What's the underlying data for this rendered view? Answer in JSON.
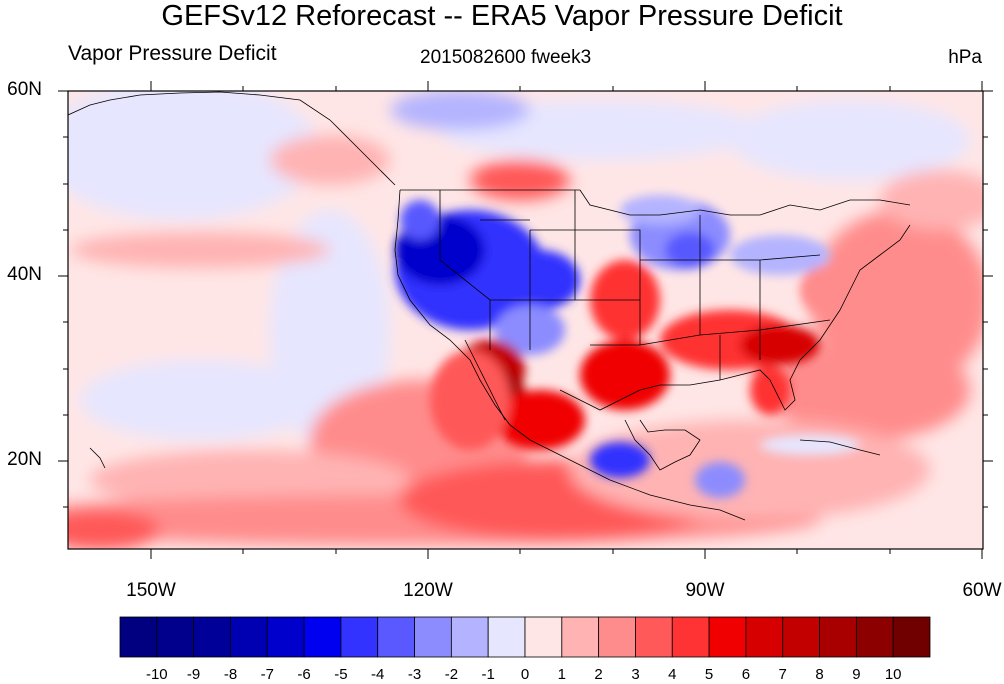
{
  "title": "GEFSv12 Reforecast -- ERA5 Vapor Pressure Deficit",
  "left_string": "Vapor Pressure Deficit",
  "center_string": "2015082600 fweek3",
  "right_string": "hPa",
  "lat_labels": [
    "60N",
    "40N",
    "20N"
  ],
  "lon_labels": [
    "150W",
    "120W",
    "90W",
    "60W"
  ],
  "colorbar": {
    "labels": [
      "-10",
      "-9",
      "-8",
      "-7",
      "-6",
      "-5",
      "-4",
      "-3",
      "-2",
      "-1",
      "0",
      "1",
      "2",
      "3",
      "4",
      "5",
      "6",
      "7",
      "8",
      "9",
      "10"
    ],
    "colors": [
      "#000080",
      "#00008c",
      "#000099",
      "#0000b3",
      "#0000cc",
      "#0000f0",
      "#3333ff",
      "#5959ff",
      "#8c8cff",
      "#b3b3ff",
      "#e6e6ff",
      "#ffe6e6",
      "#ffb3b3",
      "#ff8c8c",
      "#ff5959",
      "#ff3333",
      "#f00000",
      "#d70000",
      "#c20000",
      "#a80000",
      "#8c0000",
      "#700000"
    ]
  },
  "map": {
    "projection": "cylindrical-equidistant",
    "lon_range": [
      -159,
      -60
    ],
    "lat_range": [
      10,
      60
    ],
    "lat_ticks": [
      60,
      40,
      20
    ],
    "lon_ticks": [
      -150,
      -120,
      -90,
      -60
    ],
    "field": "Vapor Pressure Deficit difference (hPa)"
  }
}
